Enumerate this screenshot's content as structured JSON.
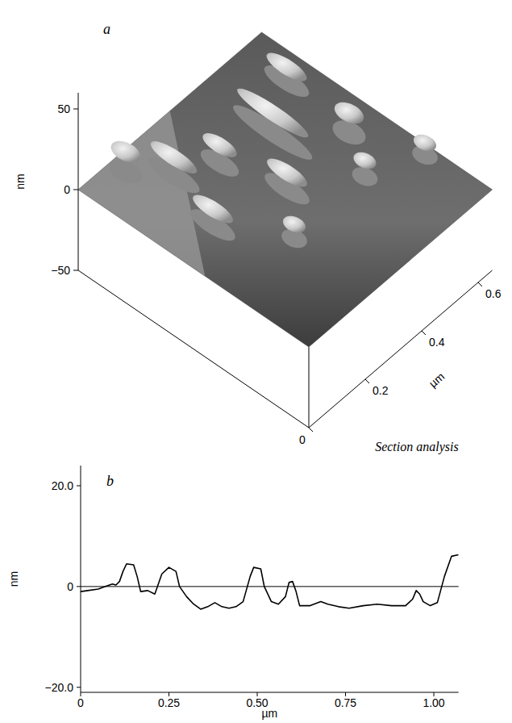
{
  "chart_data": [
    {
      "type": "surface",
      "panel_label": "a",
      "z_label": "nm",
      "x_label": "µm",
      "zlim": [
        -50,
        60
      ],
      "zticks": [
        {
          "value": -50,
          "label": "−50"
        },
        0,
        50
      ],
      "xlim": [
        0,
        0.65
      ],
      "xticks": [
        0,
        0.2,
        0.4,
        0.6
      ],
      "ylim": [
        0,
        0.65
      ],
      "grains": {
        "x": [
          0.4,
          0.3,
          0.25,
          0.15,
          0.1,
          0.52,
          0.45,
          0.55,
          0.2,
          0.6,
          0.08
        ],
        "y": [
          0.42,
          0.3,
          0.45,
          0.5,
          0.35,
          0.3,
          0.2,
          0.5,
          0.2,
          0.15,
          0.58
        ],
        "length": [
          0.22,
          0.12,
          0.1,
          0.14,
          0.12,
          0.08,
          0.06,
          0.12,
          0.06,
          0.06,
          0.08
        ],
        "width": [
          0.05,
          0.05,
          0.05,
          0.05,
          0.05,
          0.06,
          0.05,
          0.05,
          0.05,
          0.05,
          0.06
        ],
        "height": [
          22,
          18,
          20,
          20,
          18,
          22,
          18,
          16,
          16,
          14,
          22
        ]
      }
    },
    {
      "type": "line",
      "panel_label": "b",
      "title": "Section analysis",
      "x_label": "µm",
      "y_label": "nm",
      "color": "#000000",
      "x": [
        0,
        0.02,
        0.05,
        0.07,
        0.09,
        0.1,
        0.11,
        0.12,
        0.13,
        0.15,
        0.16,
        0.17,
        0.19,
        0.21,
        0.23,
        0.25,
        0.27,
        0.28,
        0.3,
        0.32,
        0.34,
        0.36,
        0.38,
        0.4,
        0.42,
        0.44,
        0.46,
        0.48,
        0.49,
        0.51,
        0.52,
        0.54,
        0.56,
        0.58,
        0.59,
        0.6,
        0.61,
        0.62,
        0.65,
        0.68,
        0.7,
        0.73,
        0.76,
        0.8,
        0.84,
        0.88,
        0.92,
        0.94,
        0.95,
        0.96,
        0.97,
        0.99,
        1.01,
        1.03,
        1.05,
        1.07
      ],
      "values": [
        -1,
        -0.8,
        -0.5,
        0,
        0.5,
        0.3,
        1,
        3,
        4.5,
        4.3,
        2,
        -1,
        -0.8,
        -1.5,
        2.5,
        3.8,
        3,
        0,
        -2,
        -3.5,
        -4.5,
        -4,
        -3.2,
        -4,
        -4.3,
        -4,
        -3,
        2,
        3.8,
        3.5,
        0,
        -3,
        -3.5,
        -2,
        0.8,
        1,
        -1,
        -3.8,
        -3.8,
        -3,
        -3.5,
        -4,
        -4.3,
        -3.8,
        -3.5,
        -3.8,
        -3.8,
        -2.5,
        -0.8,
        -1.5,
        -3,
        -3.8,
        -3.2,
        2,
        6,
        6.3
      ],
      "zero_line": 0,
      "xlim": [
        0,
        1.07
      ],
      "xticks": [
        0,
        0.25,
        {
          "value": 0.5,
          "label": "0.50"
        },
        0.75,
        {
          "value": 1,
          "label": "1.00"
        }
      ],
      "ylim": [
        -21,
        24
      ],
      "yticks": [
        {
          "value": -20,
          "label": "−20.0"
        },
        0,
        {
          "value": 20,
          "label": "20.0"
        }
      ]
    }
  ]
}
